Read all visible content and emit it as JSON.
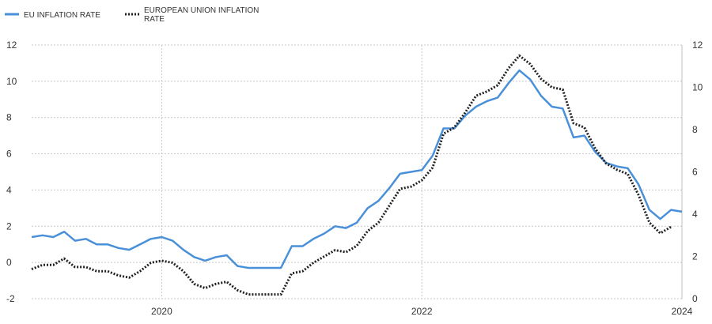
{
  "chart_data": {
    "type": "line",
    "legend_position": "top-left",
    "grid": true,
    "x_ticks": [
      "2020",
      "2022",
      "2024"
    ],
    "x_range": [
      "2019-01",
      "2024-01"
    ],
    "y_left_ticks": [
      "-2",
      "0",
      "2",
      "4",
      "6",
      "8",
      "10",
      "12"
    ],
    "y_left_range": [
      -2,
      12
    ],
    "y_right_ticks": [
      "0",
      "2",
      "4",
      "6",
      "8",
      "10",
      "12"
    ],
    "y_right_range": [
      0,
      12
    ],
    "x": [
      "2019-01",
      "2019-02",
      "2019-03",
      "2019-04",
      "2019-05",
      "2019-06",
      "2019-07",
      "2019-08",
      "2019-09",
      "2019-10",
      "2019-11",
      "2019-12",
      "2020-01",
      "2020-02",
      "2020-03",
      "2020-04",
      "2020-05",
      "2020-06",
      "2020-07",
      "2020-08",
      "2020-09",
      "2020-10",
      "2020-11",
      "2020-12",
      "2021-01",
      "2021-02",
      "2021-03",
      "2021-04",
      "2021-05",
      "2021-06",
      "2021-07",
      "2021-08",
      "2021-09",
      "2021-10",
      "2021-11",
      "2021-12",
      "2022-01",
      "2022-02",
      "2022-03",
      "2022-04",
      "2022-05",
      "2022-06",
      "2022-07",
      "2022-08",
      "2022-09",
      "2022-10",
      "2022-11",
      "2022-12",
      "2023-01",
      "2023-02",
      "2023-03",
      "2023-04",
      "2023-05",
      "2023-06",
      "2023-07",
      "2023-08",
      "2023-09",
      "2023-10",
      "2023-11",
      "2023-12",
      "2024-01"
    ],
    "series": [
      {
        "name": "EU INFLATION RATE",
        "axis": "left",
        "color": "#4a90d9",
        "style": "solid",
        "values": [
          1.4,
          1.5,
          1.4,
          1.7,
          1.2,
          1.3,
          1.0,
          1.0,
          0.8,
          0.7,
          1.0,
          1.3,
          1.4,
          1.2,
          0.7,
          0.3,
          0.1,
          0.3,
          0.4,
          -0.2,
          -0.3,
          -0.3,
          -0.3,
          -0.3,
          0.9,
          0.9,
          1.3,
          1.6,
          2.0,
          1.9,
          2.2,
          3.0,
          3.4,
          4.1,
          4.9,
          5.0,
          5.1,
          5.9,
          7.4,
          7.4,
          8.1,
          8.6,
          8.9,
          9.1,
          9.9,
          10.6,
          10.1,
          9.2,
          8.6,
          8.5,
          6.9,
          7.0,
          6.1,
          5.5,
          5.3,
          5.2,
          4.3,
          2.9,
          2.4,
          2.9,
          2.8
        ]
      },
      {
        "name": "EUROPEAN UNION INFLATION RATE",
        "axis": "right",
        "color": "#222222",
        "style": "dotted",
        "values": [
          1.4,
          1.6,
          1.6,
          1.9,
          1.5,
          1.5,
          1.3,
          1.3,
          1.1,
          1.0,
          1.3,
          1.7,
          1.8,
          1.7,
          1.3,
          0.7,
          0.5,
          0.7,
          0.8,
          0.4,
          0.2,
          0.2,
          0.2,
          0.2,
          1.2,
          1.3,
          1.7,
          2.0,
          2.3,
          2.2,
          2.5,
          3.2,
          3.6,
          4.4,
          5.2,
          5.3,
          5.6,
          6.2,
          7.8,
          8.1,
          8.8,
          9.6,
          9.8,
          10.1,
          10.9,
          11.5,
          11.1,
          10.4,
          10.0,
          9.9,
          8.3,
          8.1,
          7.1,
          6.4,
          6.1,
          5.9,
          4.9,
          3.6,
          3.1,
          3.4,
          null
        ]
      }
    ]
  }
}
